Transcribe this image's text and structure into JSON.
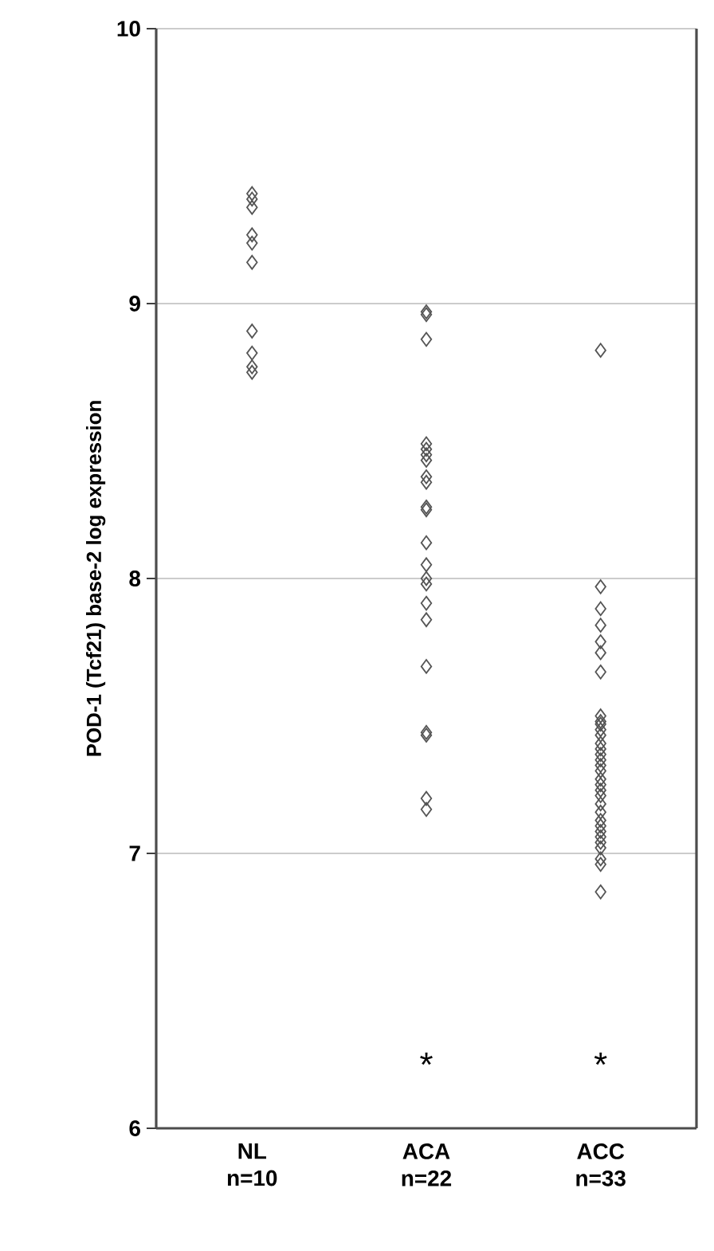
{
  "chart_data": {
    "type": "scatter",
    "ylabel": "POD-1 (Tcf21)  base-2 log expression",
    "categories": [
      "NL n=10",
      "ACA n=22",
      "ACC n=33"
    ],
    "series": [
      {
        "color": "#555555",
        "x": [
          "NL n=10",
          "NL n=10",
          "NL n=10",
          "NL n=10",
          "NL n=10",
          "NL n=10",
          "NL n=10",
          "NL n=10",
          "NL n=10",
          "NL n=10"
        ],
        "values": [
          9.4,
          9.38,
          9.35,
          9.25,
          9.22,
          9.15,
          8.9,
          8.82,
          8.77,
          8.75
        ]
      },
      {
        "color": "#555555",
        "x": [
          "ACA n=22",
          "ACA n=22",
          "ACA n=22",
          "ACA n=22",
          "ACA n=22",
          "ACA n=22",
          "ACA n=22",
          "ACA n=22",
          "ACA n=22",
          "ACA n=22",
          "ACA n=22",
          "ACA n=22",
          "ACA n=22",
          "ACA n=22",
          "ACA n=22",
          "ACA n=22",
          "ACA n=22",
          "ACA n=22",
          "ACA n=22",
          "ACA n=22",
          "ACA n=22",
          "ACA n=22"
        ],
        "values": [
          8.97,
          8.96,
          8.87,
          8.49,
          8.47,
          8.45,
          8.43,
          8.37,
          8.35,
          8.26,
          8.25,
          8.13,
          8.05,
          8.0,
          7.98,
          7.91,
          7.85,
          7.68,
          7.44,
          7.43,
          7.2,
          7.16
        ]
      },
      {
        "color": "#555555",
        "x": [
          "ACC n=33",
          "ACC n=33",
          "ACC n=33",
          "ACC n=33",
          "ACC n=33",
          "ACC n=33",
          "ACC n=33",
          "ACC n=33",
          "ACC n=33",
          "ACC n=33",
          "ACC n=33",
          "ACC n=33",
          "ACC n=33",
          "ACC n=33",
          "ACC n=33",
          "ACC n=33",
          "ACC n=33",
          "ACC n=33",
          "ACC n=33",
          "ACC n=33",
          "ACC n=33",
          "ACC n=33",
          "ACC n=33",
          "ACC n=33",
          "ACC n=33",
          "ACC n=33",
          "ACC n=33",
          "ACC n=33",
          "ACC n=33",
          "ACC n=33",
          "ACC n=33",
          "ACC n=33",
          "ACC n=33"
        ],
        "values": [
          8.83,
          7.97,
          7.89,
          7.83,
          7.77,
          7.73,
          7.66,
          7.5,
          7.48,
          7.47,
          7.45,
          7.43,
          7.4,
          7.38,
          7.36,
          7.34,
          7.32,
          7.3,
          7.27,
          7.25,
          7.23,
          7.21,
          7.18,
          7.15,
          7.12,
          7.1,
          7.08,
          7.06,
          7.04,
          7.02,
          6.98,
          6.96,
          6.86
        ]
      }
    ],
    "ylim": [
      6,
      10
    ],
    "yticks": [
      6,
      7,
      8,
      9,
      10
    ],
    "grid": "y",
    "marker": "diamond",
    "annotations": [
      "*",
      "*"
    ]
  }
}
